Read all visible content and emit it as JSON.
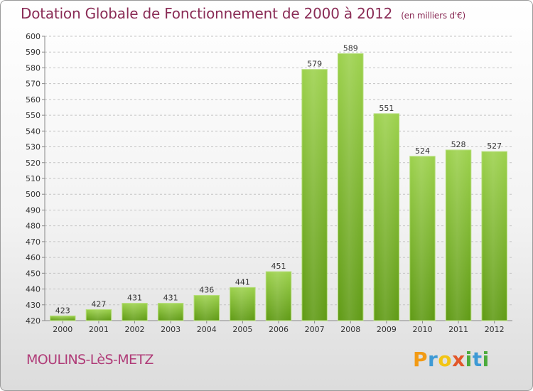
{
  "page": {
    "title": "Dotation Globale de Fonctionnement de 2000 à 2012",
    "unit": "(en milliers d'€)",
    "commune": "MOULINS-LèS-METZ",
    "logo": "Proxiti"
  },
  "chart_data": {
    "type": "bar",
    "title": "Dotation Globale de Fonctionnement de 2000 à 2012",
    "subtitle": "(en milliers d'€)",
    "xlabel": "",
    "ylabel": "",
    "categories": [
      "2000",
      "2001",
      "2002",
      "2003",
      "2004",
      "2005",
      "2006",
      "2007",
      "2008",
      "2009",
      "2010",
      "2011",
      "2012"
    ],
    "values": [
      423,
      427,
      431,
      431,
      436,
      441,
      451,
      579,
      589,
      551,
      524,
      528,
      527
    ],
    "ylim": [
      420,
      600
    ],
    "ytick_step": 10,
    "grid": true,
    "bar_color": "#7cbd2c"
  }
}
